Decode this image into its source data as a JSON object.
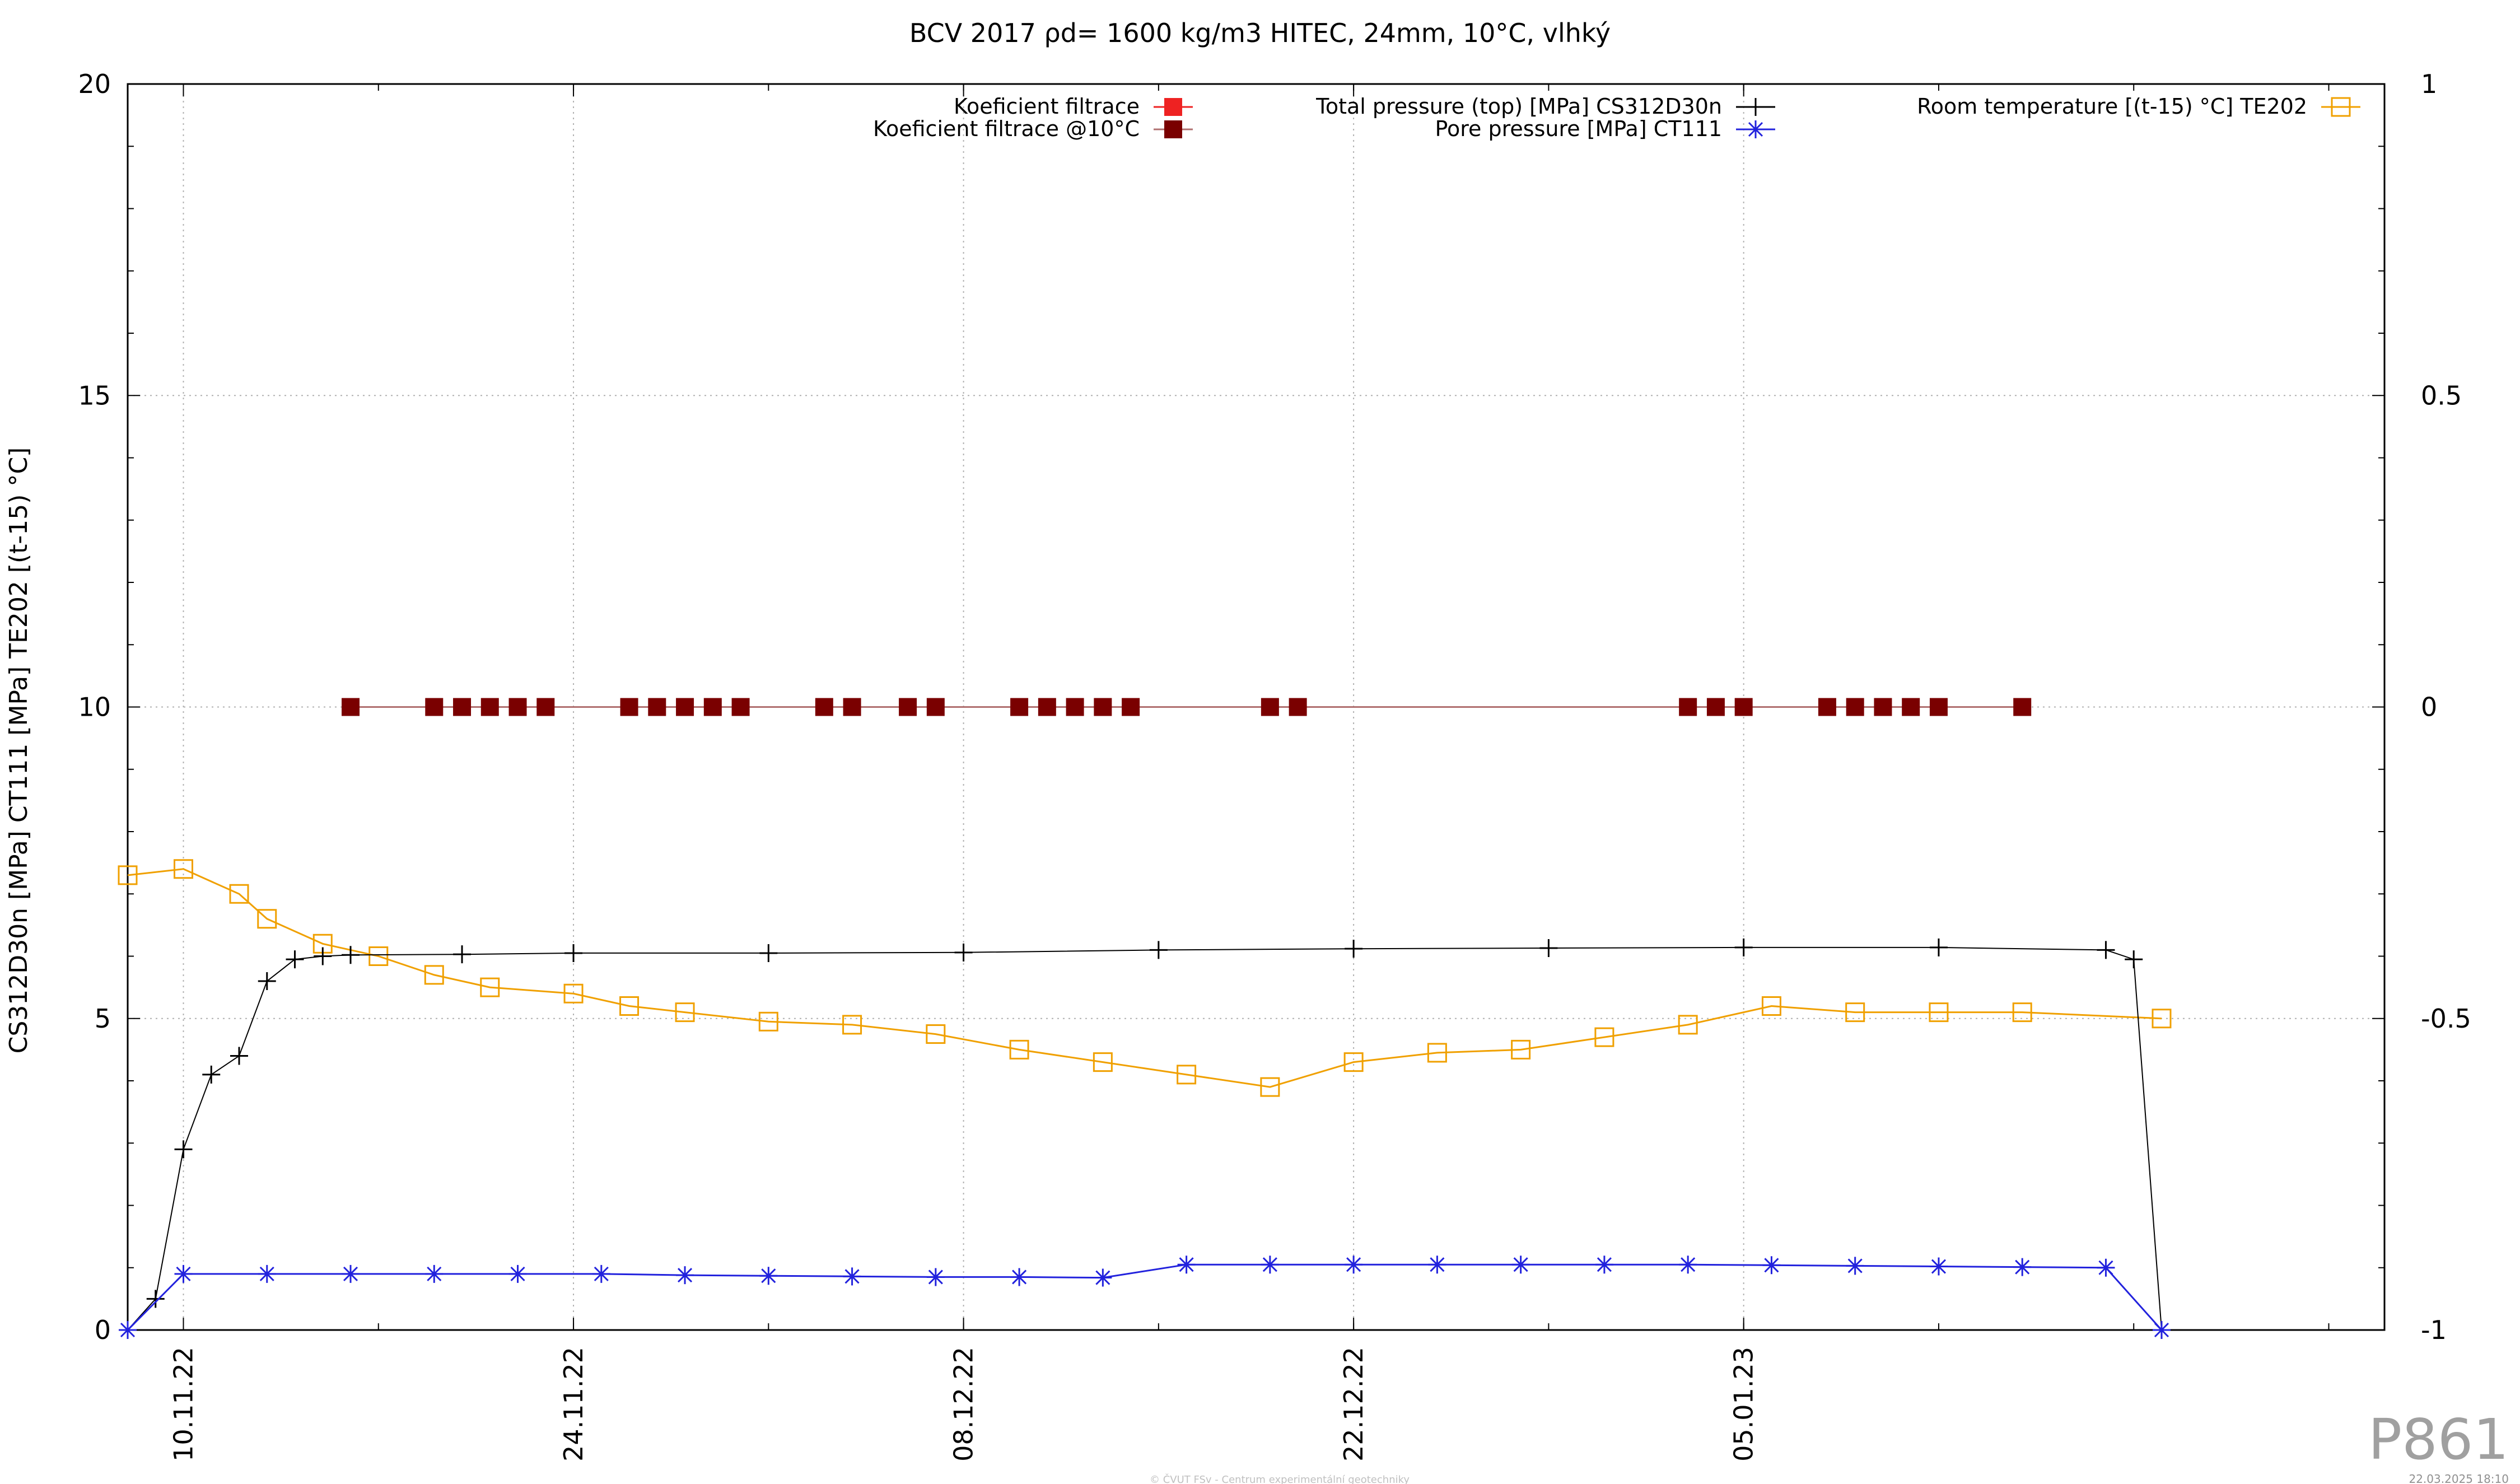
{
  "chart_data": {
    "type": "line",
    "title": "BCV 2017 ρd= 1600 kg/m3 HITEC, 24mm, 10°C, vlhký",
    "ylabel": "CS312D30n [MPa] CT111 [MPa] TE202 [(t-15) °C]",
    "xlabel": "",
    "x_is_date": true,
    "xlim": [
      "2022-11-08",
      "2023-01-28"
    ],
    "xticks": [
      {
        "date": "2022-11-10",
        "label": "10.11.22"
      },
      {
        "date": "2022-11-24",
        "label": "24.11.22"
      },
      {
        "date": "2022-12-08",
        "label": "08.12.22"
      },
      {
        "date": "2022-12-22",
        "label": "22.12.22"
      },
      {
        "date": "2023-01-05",
        "label": "05.01.23"
      }
    ],
    "ylim": [
      0,
      20
    ],
    "yticks": [
      "0",
      "5",
      "10",
      "15",
      "20"
    ],
    "y2lim": [
      -1,
      1
    ],
    "y2ticks": [
      "-1",
      "-0.5",
      "0",
      "0.5",
      "1"
    ],
    "grid": true,
    "legend_placement": "top",
    "series": [
      {
        "name": "Koeficient filtrace",
        "axis": "y2",
        "color": "#ee2222",
        "marker": "filled-square",
        "x": [],
        "values": []
      },
      {
        "name": "Koeficient filtrace @10°C",
        "axis": "y2",
        "color": "#7a0000",
        "marker": "filled-square",
        "x": [
          "2022-11-16",
          "2022-11-19",
          "2022-11-20",
          "2022-11-21",
          "2022-11-22",
          "2022-11-23",
          "2022-11-26",
          "2022-11-27",
          "2022-11-28",
          "2022-11-29",
          "2022-11-30",
          "2022-12-03",
          "2022-12-04",
          "2022-12-06",
          "2022-12-07",
          "2022-12-10",
          "2022-12-11",
          "2022-12-12",
          "2022-12-13",
          "2022-12-14",
          "2022-12-19",
          "2022-12-20",
          "2023-01-03",
          "2023-01-04",
          "2023-01-05",
          "2023-01-08",
          "2023-01-09",
          "2023-01-10",
          "2023-01-11",
          "2023-01-12",
          "2023-01-15"
        ],
        "values": [
          0,
          0,
          0,
          0,
          0,
          0,
          0,
          0,
          0,
          0,
          0,
          0,
          0,
          0,
          0,
          0,
          0,
          0,
          0,
          0,
          0,
          0,
          0,
          0,
          0,
          0,
          0,
          0,
          0,
          0,
          0
        ]
      },
      {
        "name": "Total pressure (top) [MPa] CS312D30n",
        "axis": "y",
        "color": "#000000",
        "marker": "plus",
        "x": [
          "2022-11-08",
          "2022-11-09",
          "2022-11-10",
          "2022-11-11",
          "2022-11-12",
          "2022-11-13",
          "2022-11-14",
          "2022-11-15",
          "2022-11-16",
          "2022-11-20",
          "2022-11-24",
          "2022-12-01",
          "2022-12-08",
          "2022-12-15",
          "2022-12-22",
          "2022-12-29",
          "2023-01-05",
          "2023-01-12",
          "2023-01-18",
          "2023-01-19",
          "2023-01-20"
        ],
        "values": [
          0.0,
          0.5,
          2.9,
          4.1,
          4.4,
          5.6,
          5.95,
          6.0,
          6.02,
          6.03,
          6.05,
          6.05,
          6.06,
          6.1,
          6.12,
          6.13,
          6.14,
          6.14,
          6.1,
          5.95,
          0.0
        ]
      },
      {
        "name": "Pore pressure [MPa] CT111",
        "axis": "y",
        "color": "#2222dd",
        "marker": "star",
        "x": [
          "2022-11-08",
          "2022-11-10",
          "2022-11-13",
          "2022-11-16",
          "2022-11-19",
          "2022-11-22",
          "2022-11-25",
          "2022-11-28",
          "2022-12-01",
          "2022-12-04",
          "2022-12-07",
          "2022-12-10",
          "2022-12-13",
          "2022-12-16",
          "2022-12-19",
          "2022-12-22",
          "2022-12-25",
          "2022-12-28",
          "2022-12-31",
          "2023-01-03",
          "2023-01-06",
          "2023-01-09",
          "2023-01-12",
          "2023-01-15",
          "2023-01-18",
          "2023-01-20"
        ],
        "values": [
          0.0,
          0.9,
          0.9,
          0.9,
          0.9,
          0.9,
          0.9,
          0.88,
          0.87,
          0.86,
          0.85,
          0.85,
          0.84,
          1.05,
          1.05,
          1.05,
          1.05,
          1.05,
          1.05,
          1.05,
          1.04,
          1.03,
          1.02,
          1.01,
          1.0,
          0.0
        ]
      },
      {
        "name": "Room temperature [(t-15) °C] TE202",
        "axis": "y",
        "color": "#f0a000",
        "marker": "open-square",
        "x": [
          "2022-11-08",
          "2022-11-10",
          "2022-11-12",
          "2022-11-13",
          "2022-11-15",
          "2022-11-17",
          "2022-11-19",
          "2022-11-21",
          "2022-11-24",
          "2022-11-26",
          "2022-11-28",
          "2022-12-01",
          "2022-12-04",
          "2022-12-07",
          "2022-12-10",
          "2022-12-13",
          "2022-12-16",
          "2022-12-19",
          "2022-12-22",
          "2022-12-25",
          "2022-12-28",
          "2022-12-31",
          "2023-01-03",
          "2023-01-06",
          "2023-01-09",
          "2023-01-12",
          "2023-01-15",
          "2023-01-20"
        ],
        "values": [
          7.3,
          7.4,
          7.0,
          6.6,
          6.2,
          6.0,
          5.7,
          5.5,
          5.4,
          5.2,
          5.1,
          4.95,
          4.9,
          4.75,
          4.5,
          4.3,
          4.1,
          3.9,
          4.3,
          4.45,
          4.5,
          4.7,
          4.9,
          5.2,
          5.1,
          5.1,
          5.1,
          5.0
        ]
      }
    ],
    "annotations": [
      "P861",
      "© ČVUT FSv - Centrum experimentální geotechniky",
      "22.03.2025 18:10"
    ]
  }
}
